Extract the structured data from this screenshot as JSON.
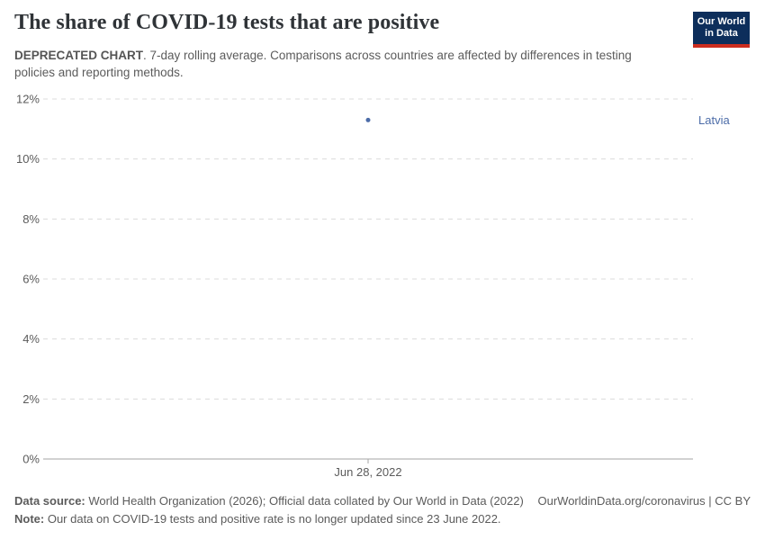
{
  "header": {
    "title": "The share of COVID-19 tests that are positive",
    "subtitle_bold": "DEPRECATED CHART",
    "subtitle_rest": ". 7-day rolling average. Comparisons across countries are affected by differences in testing policies and reporting methods.",
    "logo": {
      "line1": "Our World",
      "line2": "in Data",
      "bg_color": "#0d2e5b",
      "stripe_color": "#cc2d1f"
    }
  },
  "chart_data": {
    "type": "scatter",
    "title": "The share of COVID-19 tests that are positive",
    "series": [
      {
        "name": "Latvia",
        "color": "#4c6ca8",
        "points": [
          {
            "date": "Jun 28, 2022",
            "value": 11.3
          }
        ]
      }
    ],
    "x_tick_labels": [
      "Jun 28, 2022"
    ],
    "x_tick_fracs": [
      0.5
    ],
    "yticks": [
      0,
      2,
      4,
      6,
      8,
      10,
      12
    ],
    "ytick_format": "{v}%",
    "ylim": [
      0,
      12
    ],
    "grid": true,
    "legend_position": "right-of-point",
    "gridline_color": "#dcdcdc",
    "axis_color": "#a5a5a5",
    "tick_label_color": "#5b5b5b"
  },
  "footer": {
    "datasource_label": "Data source:",
    "datasource_text": " World Health Organization (2026); Official data collated by Our World in Data (2022)",
    "link_text": "OurWorldinData.org/coronavirus | CC BY",
    "note_label": "Note:",
    "note_text": " Our data on COVID-19 tests and positive rate is no longer updated since 23 June 2022."
  }
}
